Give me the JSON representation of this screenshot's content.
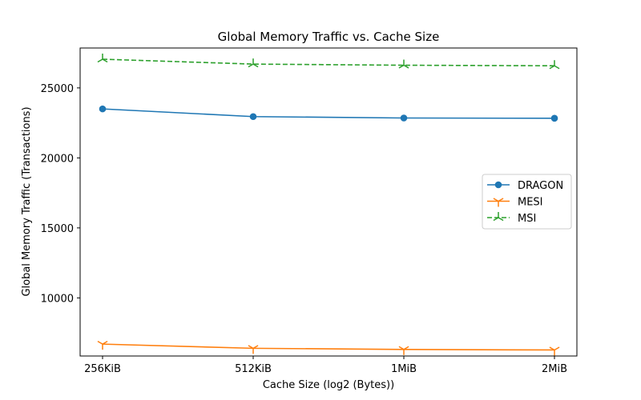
{
  "chart_data": {
    "type": "line",
    "title": "Global Memory Traffic vs. Cache Size",
    "xlabel": "Cache Size (log2 (Bytes))",
    "ylabel": "Global Memory Traffic (Transactions)",
    "categories": [
      "256KiB",
      "512KiB",
      "1MiB",
      "2MiB"
    ],
    "ylim": [
      5850,
      27850
    ],
    "yticks": [
      10000,
      15000,
      20000,
      25000
    ],
    "yticklabels": [
      "10000",
      "15000",
      "20000",
      "25000"
    ],
    "grid": false,
    "legend_position": "center-right",
    "series": [
      {
        "name": "DRAGON",
        "values": [
          23500,
          22950,
          22850,
          22830
        ],
        "color": "#1f77b4",
        "linestyle": "solid",
        "marker": "circle"
      },
      {
        "name": "MESI",
        "values": [
          6700,
          6400,
          6320,
          6280
        ],
        "color": "#ff7f0e",
        "linestyle": "solid",
        "marker": "tri-down"
      },
      {
        "name": "MSI",
        "values": [
          27050,
          26700,
          26620,
          26580
        ],
        "color": "#2ca02c",
        "linestyle": "dashed",
        "marker": "tri-up"
      }
    ]
  }
}
